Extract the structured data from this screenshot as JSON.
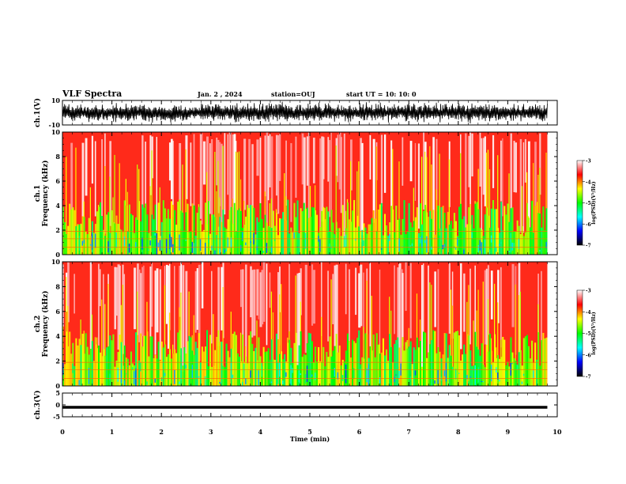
{
  "header": {
    "title": "VLF Spectra",
    "date": "Jan. 2 , 2024",
    "station": "station=OUJ",
    "start": "start UT = 10: 10: 0"
  },
  "colors": {
    "colormap": [
      "#ffffff",
      "#ff0000",
      "#ffff00",
      "#00ff00",
      "#00ffff",
      "#0000ff",
      "#000000"
    ]
  },
  "chart_data": [
    {
      "type": "line",
      "ylabel": "ch.1(V)",
      "ylim": [
        -10,
        10
      ],
      "yticks": [
        "10",
        "-10"
      ],
      "x": [
        0,
        9.8
      ],
      "y_envelope": [
        -9,
        9
      ],
      "note": ""
    },
    {
      "type": "heatmap",
      "ylabel": "ch.1\nFrequency (kHz)",
      "ylabel_lines": [
        "ch.1",
        "Frequency (kHz)"
      ],
      "ylim": [
        0,
        10
      ],
      "yticks": [
        "0",
        "2",
        "4",
        "6",
        "8",
        "10"
      ],
      "xlim": [
        0,
        10
      ],
      "data_extent_x": [
        0,
        9.8
      ],
      "colorbar": {
        "label": "log(PSD)(V²/Hz)",
        "range": [
          -7,
          -3
        ],
        "ticks": [
          "-3",
          "-4",
          "-5",
          "-6",
          "-7"
        ]
      }
    },
    {
      "type": "heatmap",
      "ylabel": "ch.2\nFrequency (kHz)",
      "ylabel_lines": [
        "ch.2",
        "Frequency (kHz)"
      ],
      "ylim": [
        0,
        10
      ],
      "yticks": [
        "0",
        "2",
        "4",
        "6",
        "8",
        "10"
      ],
      "xlim": [
        0,
        10
      ],
      "data_extent_x": [
        0,
        9.8
      ],
      "colorbar": {
        "label": "log(PSD)(V²/Hz)",
        "range": [
          -7,
          -3
        ],
        "ticks": [
          "-3",
          "-4",
          "-5",
          "-6",
          "-7"
        ]
      }
    },
    {
      "type": "line",
      "ylabel": "ch.3(V)",
      "ylim": [
        -5,
        5
      ],
      "yticks": [
        "5",
        "0",
        "-5"
      ],
      "x": [
        0,
        9.8
      ],
      "y": [
        -1,
        -1
      ]
    }
  ],
  "xaxis": {
    "label": "Time (min)",
    "ticks": [
      "0",
      "1",
      "2",
      "3",
      "4",
      "5",
      "6",
      "7",
      "8",
      "9",
      "10"
    ],
    "xlim": [
      0,
      10
    ]
  }
}
